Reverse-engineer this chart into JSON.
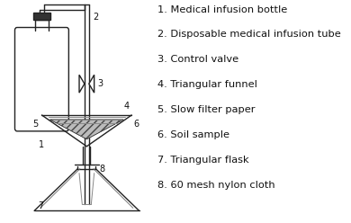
{
  "background_color": "#ffffff",
  "legend_items": [
    "1. Medical infusion bottle",
    "2. Disposable medical infusion tube",
    "3. Control valve",
    "4. Triangular funnel",
    "5. Slow filter paper",
    "6. Soil sample",
    "7. Triangular flask",
    "8. 60 mesh nylon cloth"
  ],
  "line_color": "#222222",
  "text_color": "#111111",
  "label_fontsize": 7.0,
  "legend_fontsize": 8.2
}
